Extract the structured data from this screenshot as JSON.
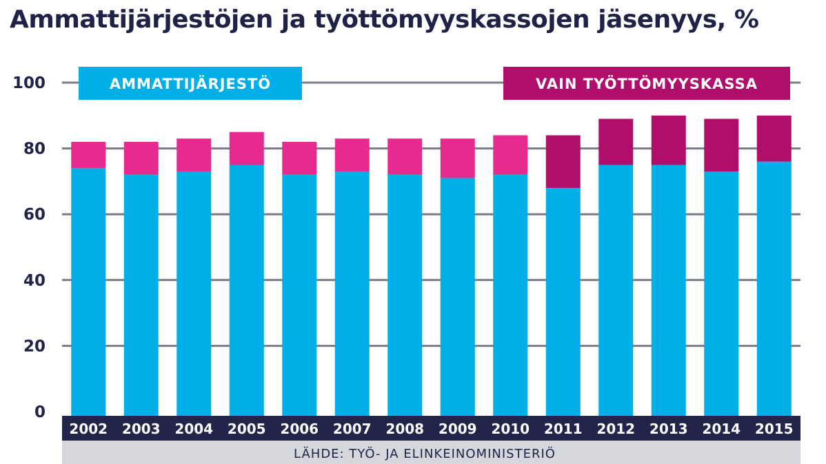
{
  "title": "Ammattijärjestöjen ja työttömyyskassojen jäsenyys, %",
  "source": "LÄHDE: TYÖ- JA ELINKEINOMINISTERIÖ",
  "colors": {
    "union": "#00aee8",
    "kassa_pre2011": "#e62a8f",
    "kassa_2011_on": "#b00e6b",
    "axis_band": "#23244a",
    "grid": "#7a7a8a",
    "source_band": "#d6d7dd"
  },
  "chart_data": {
    "type": "bar",
    "stacked": true,
    "categories": [
      "2002",
      "2003",
      "2004",
      "2005",
      "2006",
      "2007",
      "2008",
      "2009",
      "2010",
      "2011",
      "2012",
      "2013",
      "2014",
      "2015"
    ],
    "series": [
      {
        "name": "AMMATTIJÄRJESTÖ",
        "values": [
          74,
          72,
          73,
          75,
          72,
          73,
          72,
          71,
          72,
          68,
          75,
          75,
          73,
          76
        ]
      },
      {
        "name": "VAIN TYÖTTÖMYYSKASSA",
        "values": [
          8,
          10,
          10,
          10,
          10,
          10,
          11,
          12,
          12,
          16,
          14,
          15,
          16,
          14
        ]
      }
    ],
    "ylim": [
      0,
      100
    ],
    "yticks": [
      0,
      20,
      40,
      60,
      80,
      100
    ],
    "grid": true,
    "legend_placement": "top"
  }
}
